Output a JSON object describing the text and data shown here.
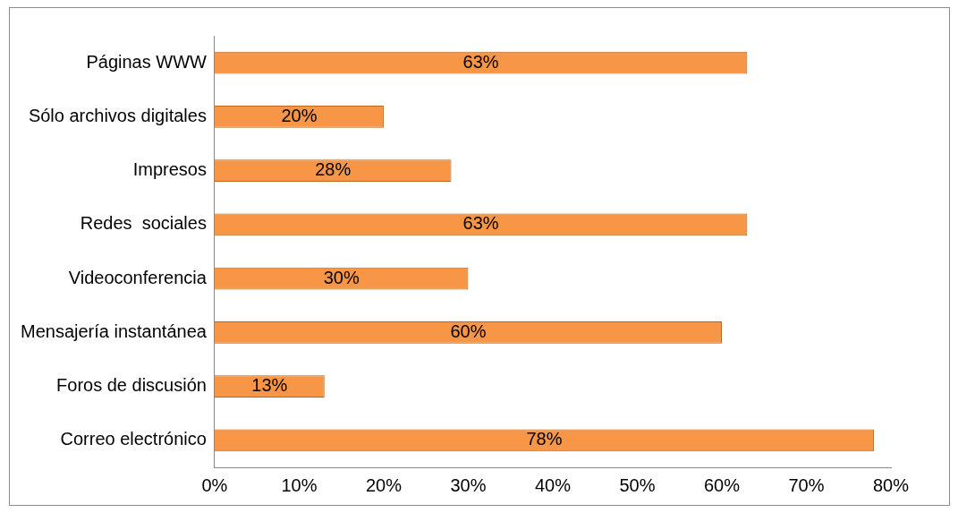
{
  "chart_data": {
    "type": "bar",
    "orientation": "horizontal",
    "categories": [
      "Páginas WWW",
      "Sólo archivos digitales",
      "Impresos",
      "Redes  sociales",
      "Videoconferencia",
      "Mensajería instantánea",
      "Foros de discusión",
      "Correo electrónico"
    ],
    "values": [
      63,
      20,
      28,
      63,
      30,
      60,
      13,
      78
    ],
    "value_labels": [
      "63%",
      "20%",
      "28%",
      "63%",
      "30%",
      "60%",
      "13%",
      "78%"
    ],
    "color": "#f79646",
    "xlim": [
      0,
      80
    ],
    "xticks": [
      {
        "value": 0,
        "label": "0%"
      },
      {
        "value": 10,
        "label": "10%"
      },
      {
        "value": 20,
        "label": "20%"
      },
      {
        "value": 30,
        "label": "30%"
      },
      {
        "value": 40,
        "label": "40%"
      },
      {
        "value": 50,
        "label": "50%"
      },
      {
        "value": 60,
        "label": "60%"
      },
      {
        "value": 70,
        "label": "70%"
      },
      {
        "value": 80,
        "label": "80%"
      }
    ],
    "grid": false,
    "legend": false
  }
}
